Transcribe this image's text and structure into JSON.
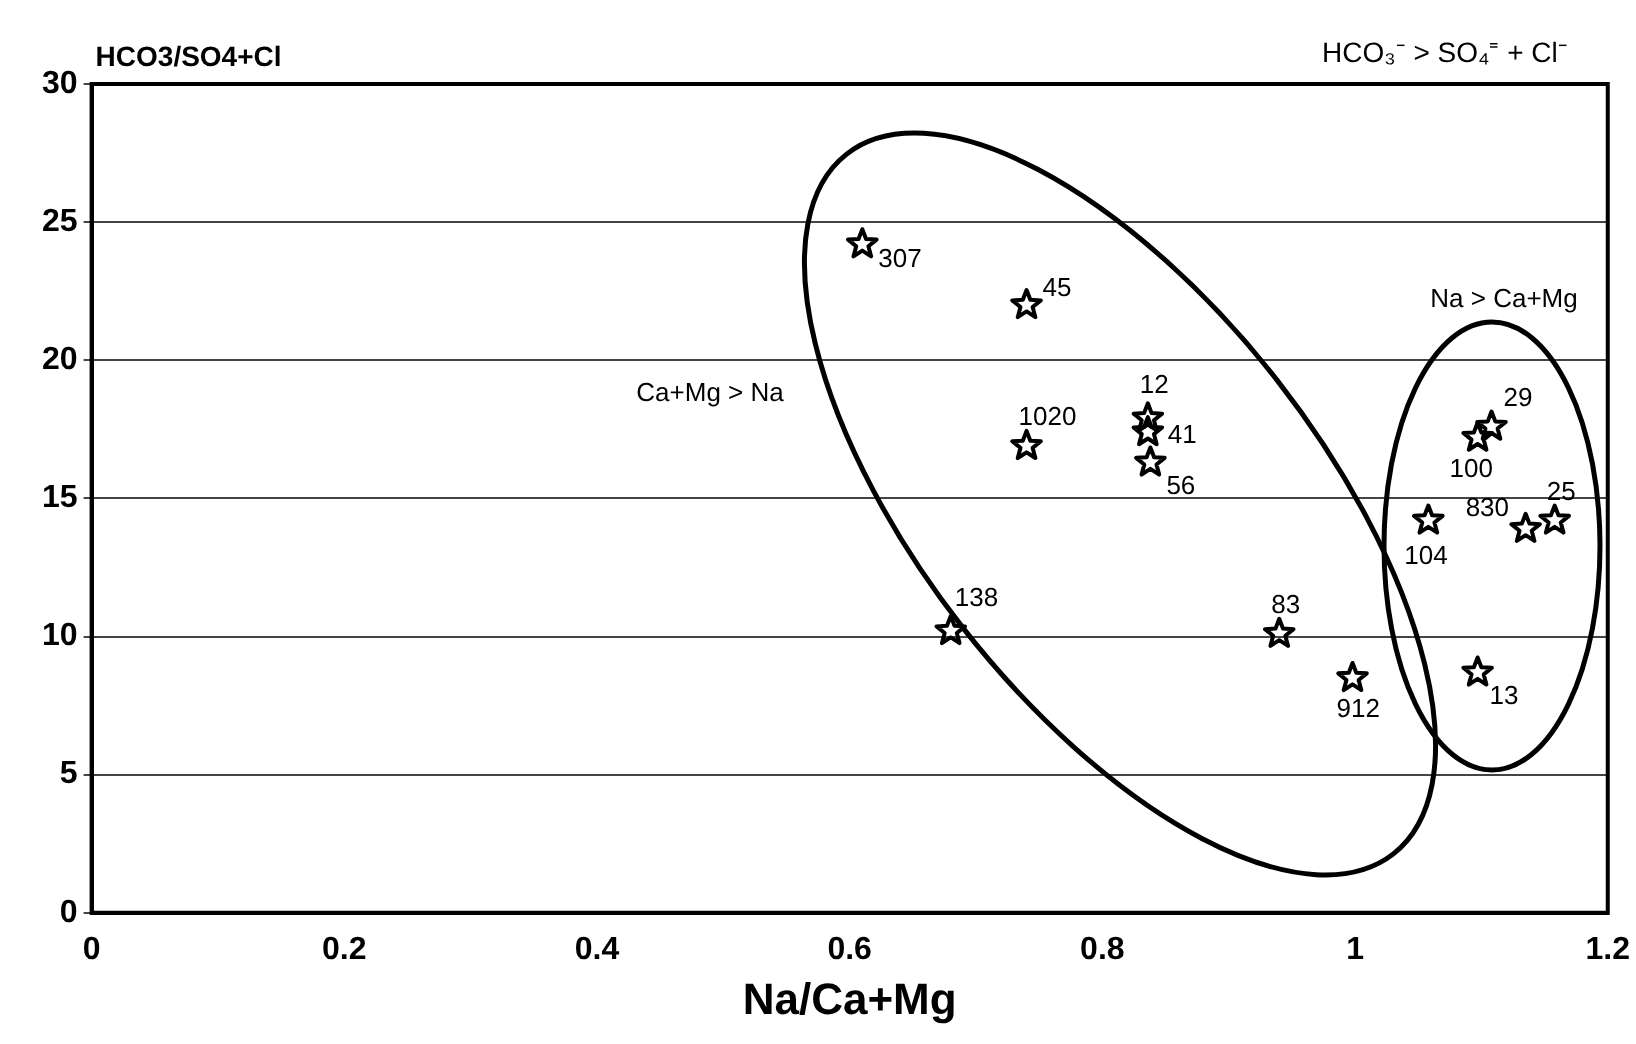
{
  "chart_data": {
    "type": "scatter",
    "title": "HCO₃⁻ > SO₄⁼ + Cl⁻",
    "xlabel": "Na/Ca+Mg",
    "ylabel": "HCO3/SO4+Cl",
    "series": [
      {
        "color": "#000000",
        "x": [
          0.61,
          0.74,
          0.74,
          0.836,
          0.836,
          0.838,
          0.68,
          0.94,
          0.998,
          1.108,
          1.097,
          1.058,
          1.135,
          1.158,
          1.097
        ],
        "values": [
          24.2,
          22.0,
          16.9,
          17.9,
          17.4,
          16.3,
          10.2,
          10.1,
          8.5,
          17.6,
          17.2,
          14.2,
          13.9,
          14.2,
          8.7
        ]
      }
    ],
    "annotations": [
      {
        "text": "307",
        "x": 0.61,
        "y": 24.2
      },
      {
        "text": "45",
        "x": 0.74,
        "y": 22.0
      },
      {
        "text": "1020",
        "x": 0.74,
        "y": 16.9
      },
      {
        "text": "12",
        "x": 0.836,
        "y": 17.9
      },
      {
        "text": "41",
        "x": 0.836,
        "y": 17.4
      },
      {
        "text": "56",
        "x": 0.838,
        "y": 16.3
      },
      {
        "text": "138",
        "x": 0.68,
        "y": 10.2
      },
      {
        "text": "83",
        "x": 0.94,
        "y": 10.1
      },
      {
        "text": "912",
        "x": 0.998,
        "y": 8.5
      },
      {
        "text": "29",
        "x": 1.108,
        "y": 17.6
      },
      {
        "text": "100",
        "x": 1.097,
        "y": 17.2
      },
      {
        "text": "104",
        "x": 1.058,
        "y": 14.2
      },
      {
        "text": "830",
        "x": 1.135,
        "y": 13.9
      },
      {
        "text": "25",
        "x": 1.158,
        "y": 14.2
      },
      {
        "text": "13",
        "x": 1.097,
        "y": 8.7
      },
      "Ca+Mg > Na",
      "Na > Ca+Mg"
    ],
    "xlim": [
      0,
      1.2
    ],
    "xticks": [
      0,
      0.2,
      0.4,
      0.6,
      0.8,
      1,
      1.2
    ],
    "ylim": [
      0,
      30
    ],
    "yticks": [
      0,
      5,
      10,
      15,
      20,
      25,
      30
    ],
    "grid": "y",
    "marker": "star",
    "legend": false
  }
}
